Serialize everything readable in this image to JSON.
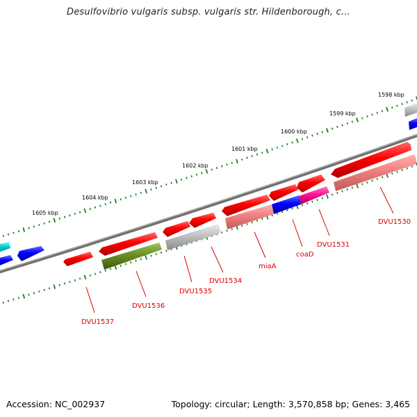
{
  "title": "Desulfovibrio vulgaris subsp. vulgaris str. Hildenborough, c...",
  "footer": {
    "accession": "Accession: NC_002937",
    "summary": "Topology: circular; Length: 3,570,858 bp; Genes: 3,465"
  },
  "scale_labels": [
    "1598 kbp",
    "1599 kbp",
    "1600 kbp",
    "1601 kbp",
    "1602 kbp",
    "1603 kbp",
    "1604 kbp",
    "1605 kbp"
  ],
  "gene_labels": [
    "DVU1530",
    "DVU1531",
    "coaD",
    "miaA",
    "DVU1534",
    "DVU1535",
    "DVU1536",
    "DVU1537"
  ],
  "colors": {
    "gene": "#ff0000",
    "gene_light": "#f08080",
    "backbone": "#808080",
    "tick": "#1a7a1a",
    "label": "#d40000",
    "blue": "#0000ff",
    "cyan": "#00cccc",
    "magenta": "#ff1493",
    "olive": "#6b8e23",
    "grey_feature": "#c0c0c0"
  }
}
